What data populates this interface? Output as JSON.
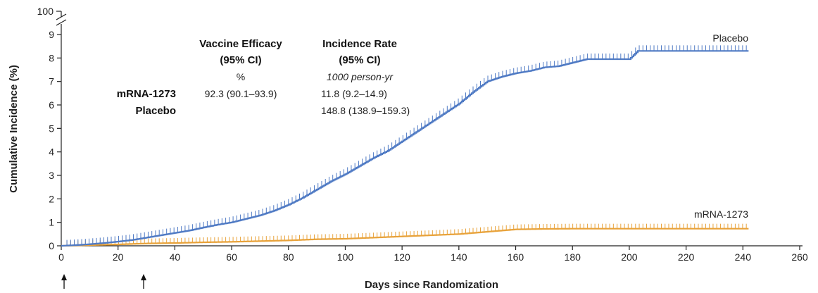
{
  "chart_data": {
    "type": "line",
    "step": true,
    "xlabel": "Days since Randomization",
    "ylabel": "Cumulative Incidence (%)",
    "xlim": [
      0,
      260
    ],
    "ylim": [
      0,
      9
    ],
    "y_break_label": "100",
    "x_ticks": [
      "0",
      "20",
      "40",
      "60",
      "80",
      "100",
      "120",
      "140",
      "160",
      "180",
      "200",
      "220",
      "240",
      "260"
    ],
    "y_ticks": [
      "0",
      "1",
      "2",
      "3",
      "4",
      "5",
      "6",
      "7",
      "8",
      "9"
    ],
    "arrows_at_days": [
      1,
      29
    ],
    "colors": {
      "placebo": "#4f7ac4",
      "vaccine": "#e8a23a"
    },
    "series": [
      {
        "name": "Placebo",
        "x": [
          0,
          5,
          10,
          15,
          20,
          25,
          30,
          35,
          40,
          45,
          50,
          55,
          60,
          65,
          70,
          75,
          80,
          85,
          90,
          95,
          100,
          105,
          110,
          115,
          120,
          125,
          130,
          135,
          140,
          145,
          150,
          155,
          160,
          165,
          170,
          175,
          180,
          185,
          190,
          195,
          200,
          203,
          210,
          220,
          230,
          242
        ],
        "values": [
          0,
          0.03,
          0.07,
          0.12,
          0.18,
          0.25,
          0.35,
          0.45,
          0.55,
          0.65,
          0.78,
          0.9,
          1.0,
          1.15,
          1.3,
          1.5,
          1.75,
          2.05,
          2.4,
          2.75,
          3.05,
          3.4,
          3.75,
          4.05,
          4.45,
          4.85,
          5.25,
          5.65,
          6.05,
          6.55,
          7.0,
          7.2,
          7.35,
          7.45,
          7.6,
          7.65,
          7.8,
          7.95,
          7.95,
          7.95,
          7.95,
          8.3,
          8.3,
          8.3,
          8.3,
          8.3
        ]
      },
      {
        "name": "mRNA-1273",
        "x": [
          0,
          10,
          20,
          30,
          40,
          50,
          60,
          70,
          80,
          90,
          100,
          110,
          120,
          130,
          140,
          150,
          155,
          160,
          170,
          180,
          200,
          220,
          242
        ],
        "values": [
          0,
          0.03,
          0.06,
          0.1,
          0.12,
          0.15,
          0.17,
          0.2,
          0.23,
          0.28,
          0.3,
          0.35,
          0.4,
          0.45,
          0.5,
          0.6,
          0.65,
          0.7,
          0.72,
          0.73,
          0.73,
          0.73,
          0.73
        ]
      }
    ],
    "table": {
      "col_efficacy_header_line1": "Vaccine Efficacy",
      "col_efficacy_header_line2": "(95% CI)",
      "col_efficacy_unit": "%",
      "col_rate_header_line1": "Incidence Rate",
      "col_rate_header_line2": "(95% CI)",
      "col_rate_unit": "1000 person-yr",
      "rows": [
        {
          "label": "mRNA-1273",
          "efficacy": "92.3 (90.1–93.9)",
          "rate": "11.8 (9.2–14.9)"
        },
        {
          "label": "Placebo",
          "efficacy": "",
          "rate": "148.8 (138.9–159.3)"
        }
      ]
    }
  }
}
